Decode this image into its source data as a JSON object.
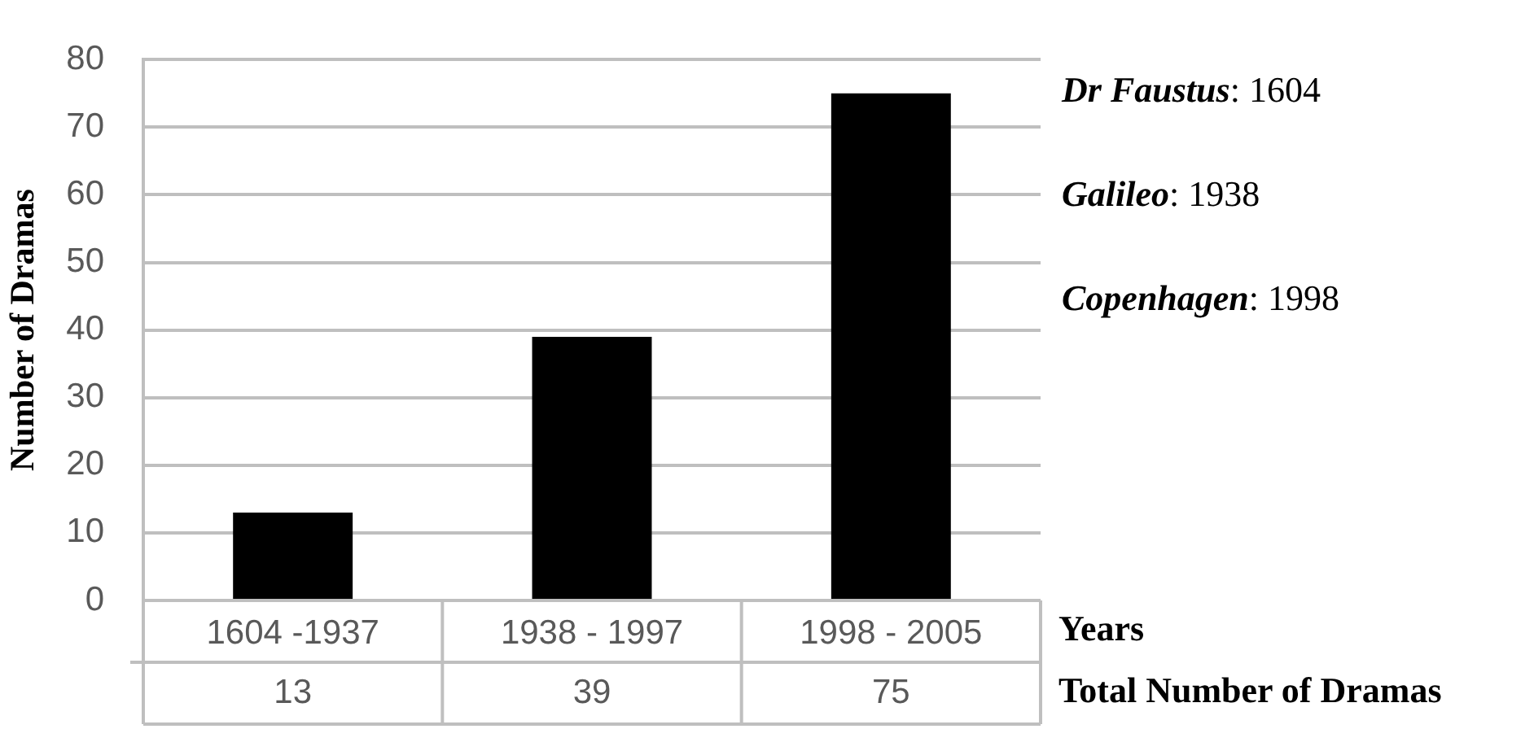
{
  "chart_data": {
    "type": "bar",
    "categories": [
      "1604 -1937",
      "1938 - 1997",
      "1998 - 2005"
    ],
    "values": [
      13,
      39,
      75
    ],
    "color": "#000000",
    "xlabel": "Years",
    "ylabel": "Number of Dramas",
    "ylim": [
      0,
      80
    ],
    "yticks": [
      0,
      10,
      20,
      30,
      40,
      50,
      60,
      70,
      80
    ],
    "grid": "y",
    "data_labels": true,
    "annotations": [
      "Dr Faustus: 1604",
      "Galileo: 1938",
      "Copenhagen: 1998",
      "Total Number of Dramas"
    ]
  }
}
